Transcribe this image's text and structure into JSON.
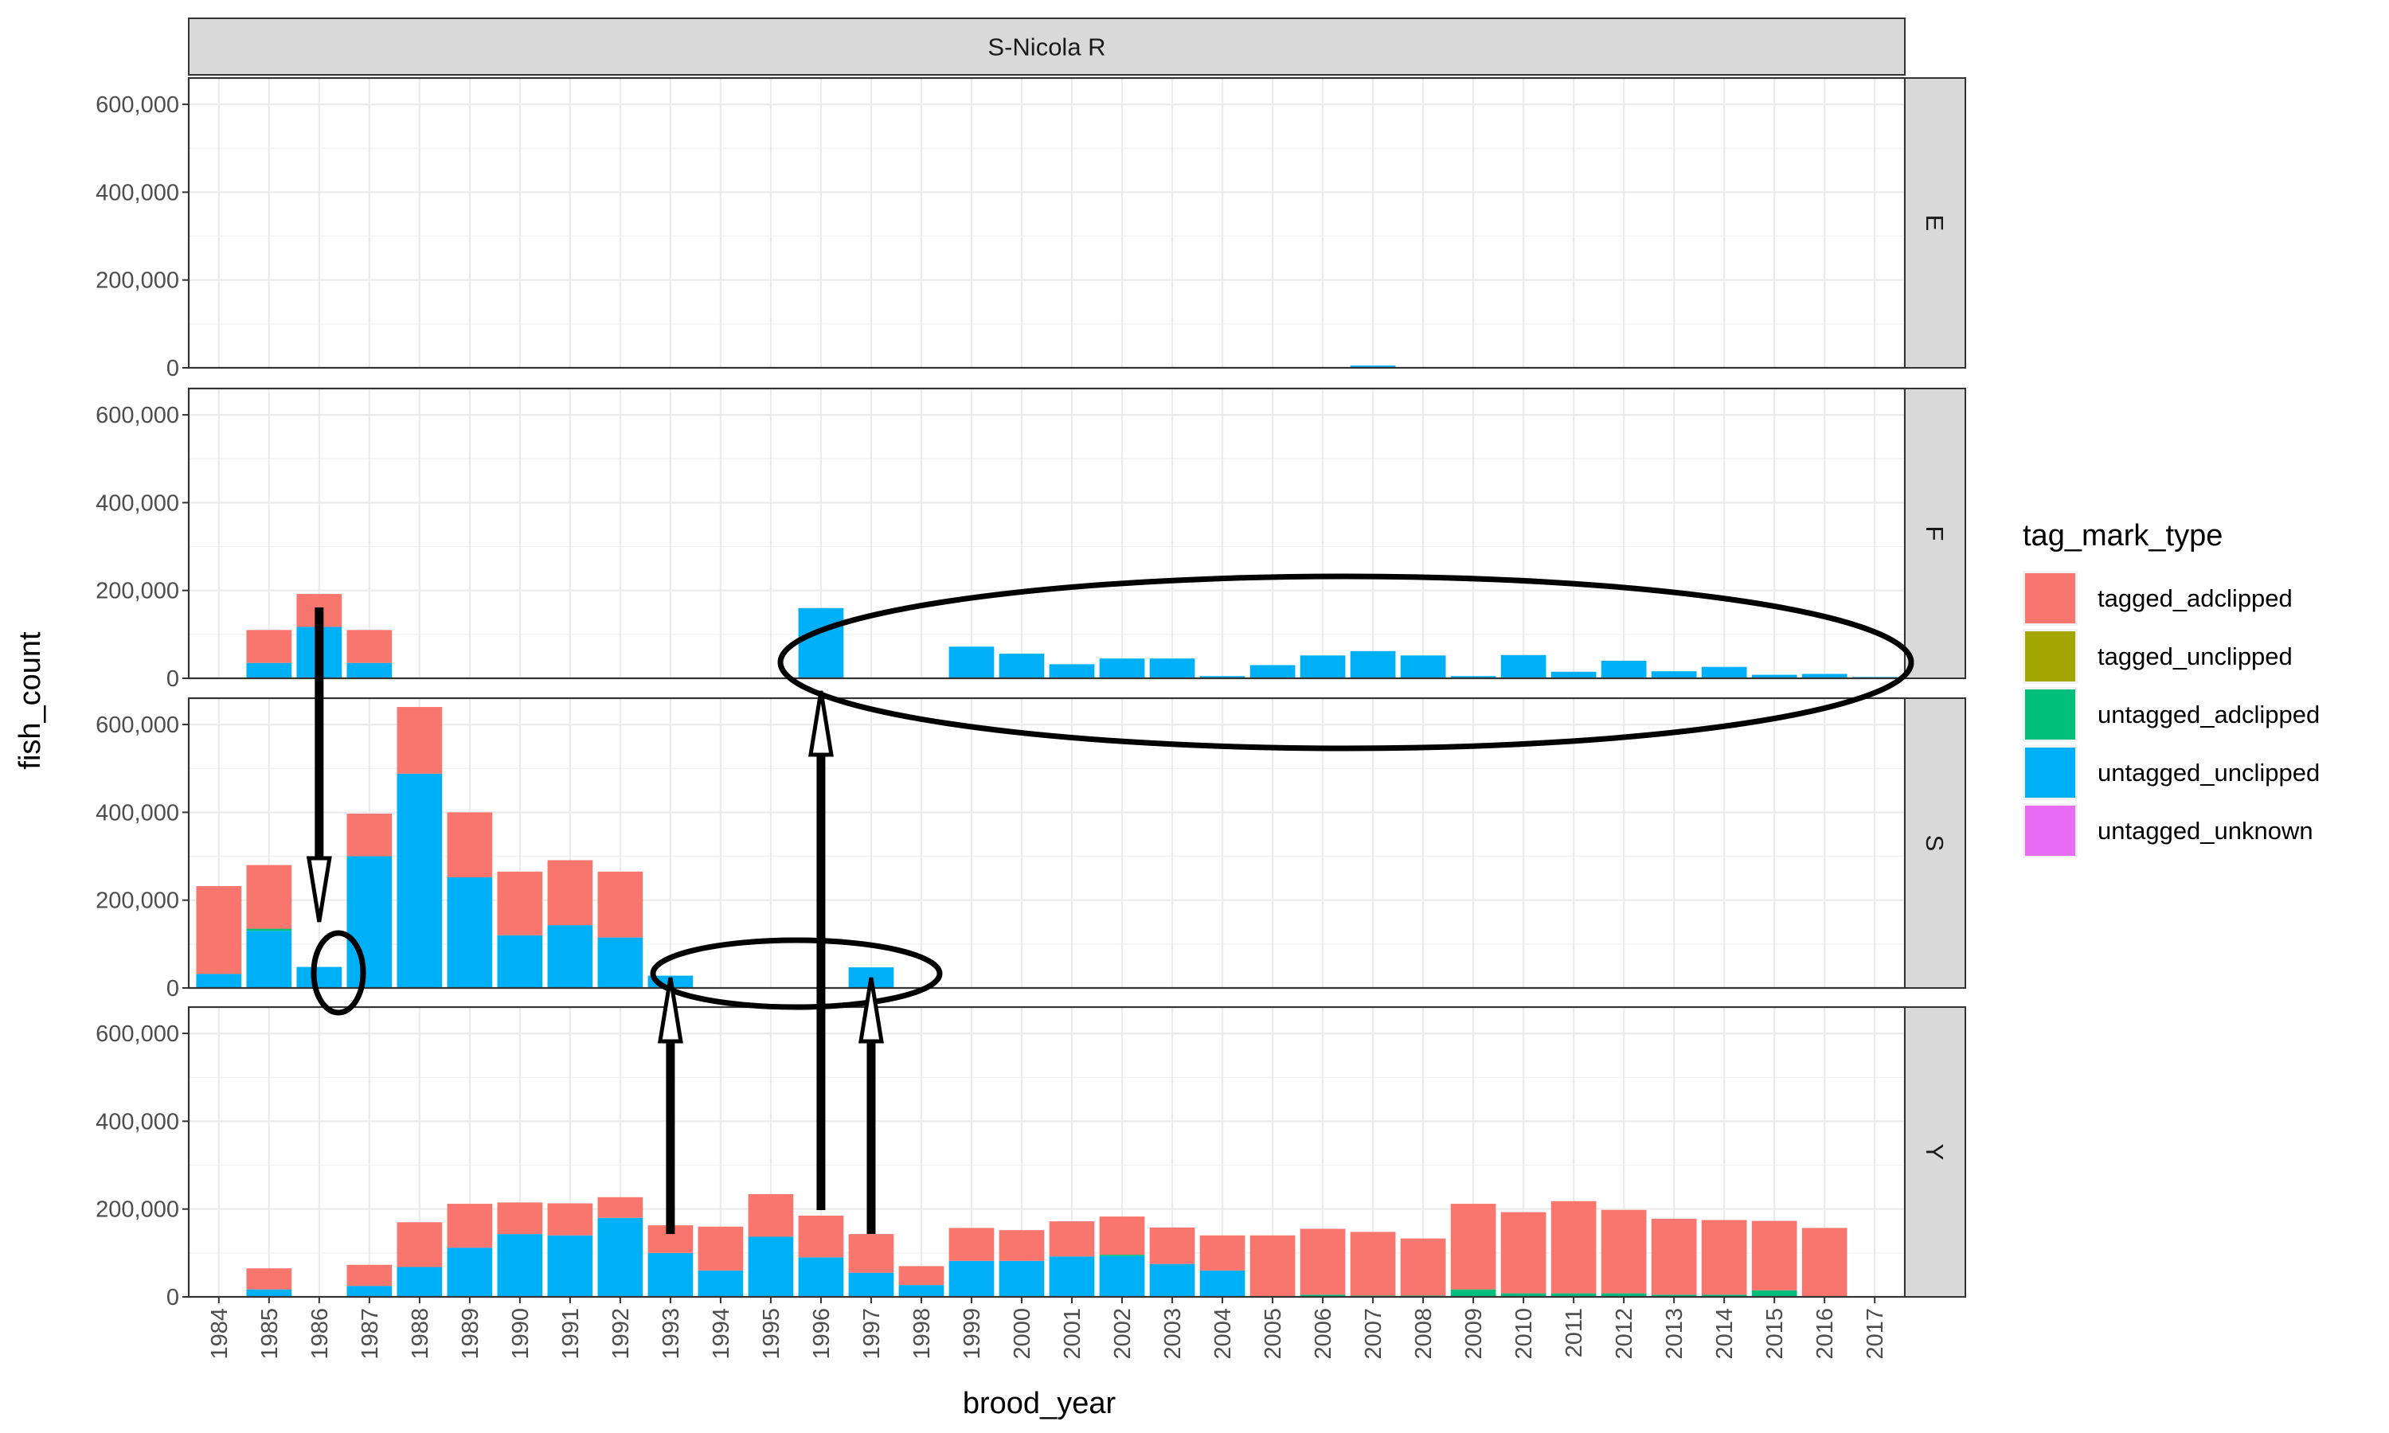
{
  "chart_data": {
    "type": "bar",
    "stacked": true,
    "facet_title": "S-Nicola R",
    "xlabel": "brood_year",
    "ylabel": "fish_count",
    "ylim": [
      0,
      660000
    ],
    "y_ticks": [
      0,
      200000,
      400000,
      600000
    ],
    "y_tick_labels": [
      "0",
      "200,000",
      "400,000",
      "600,000"
    ],
    "grid": true,
    "legend_position": "right",
    "legend_title": "tag_mark_type",
    "categories": [
      "1984",
      "1985",
      "1986",
      "1987",
      "1988",
      "1989",
      "1990",
      "1991",
      "1992",
      "1993",
      "1994",
      "1995",
      "1996",
      "1997",
      "1998",
      "1999",
      "2000",
      "2001",
      "2002",
      "2003",
      "2004",
      "2005",
      "2006",
      "2007",
      "2008",
      "2009",
      "2010",
      "2011",
      "2012",
      "2013",
      "2014",
      "2015",
      "2016",
      "2017"
    ],
    "series_styles": [
      {
        "name": "tagged_adclipped",
        "color": "#F8766D"
      },
      {
        "name": "tagged_unclipped",
        "color": "#A3A500"
      },
      {
        "name": "untagged_adclipped",
        "color": "#00BF7D"
      },
      {
        "name": "untagged_unclipped",
        "color": "#00B0F6"
      },
      {
        "name": "untagged_unknown",
        "color": "#E76BF3"
      }
    ],
    "panels": [
      {
        "label": "E",
        "series": [
          {
            "name": "tagged_adclipped",
            "values": [
              0,
              0,
              0,
              0,
              0,
              0,
              0,
              0,
              0,
              0,
              0,
              0,
              0,
              0,
              0,
              0,
              0,
              0,
              0,
              0,
              0,
              0,
              0,
              0,
              0,
              0,
              0,
              0,
              0,
              0,
              0,
              0,
              0,
              0
            ]
          },
          {
            "name": "tagged_unclipped",
            "values": [
              0,
              0,
              0,
              0,
              0,
              0,
              0,
              0,
              0,
              0,
              0,
              0,
              0,
              0,
              0,
              0,
              0,
              0,
              0,
              0,
              0,
              0,
              0,
              0,
              0,
              0,
              0,
              0,
              0,
              0,
              0,
              0,
              0,
              0
            ]
          },
          {
            "name": "untagged_adclipped",
            "values": [
              0,
              0,
              0,
              0,
              0,
              0,
              0,
              0,
              0,
              0,
              0,
              0,
              0,
              0,
              0,
              0,
              0,
              0,
              0,
              0,
              0,
              0,
              0,
              0,
              0,
              0,
              0,
              0,
              0,
              0,
              0,
              0,
              0,
              0
            ]
          },
          {
            "name": "untagged_unclipped",
            "values": [
              0,
              0,
              0,
              0,
              0,
              0,
              0,
              0,
              0,
              0,
              0,
              0,
              0,
              0,
              0,
              0,
              0,
              0,
              0,
              0,
              0,
              0,
              0,
              5000,
              0,
              0,
              0,
              0,
              0,
              0,
              0,
              0,
              0,
              0
            ]
          },
          {
            "name": "untagged_unknown",
            "values": [
              0,
              0,
              0,
              0,
              0,
              0,
              0,
              0,
              0,
              0,
              0,
              0,
              0,
              0,
              0,
              0,
              0,
              0,
              0,
              0,
              0,
              0,
              0,
              0,
              0,
              0,
              0,
              0,
              0,
              0,
              0,
              0,
              0,
              0
            ]
          }
        ]
      },
      {
        "label": "F",
        "series": [
          {
            "name": "tagged_adclipped",
            "values": [
              0,
              75000,
              75000,
              75000,
              0,
              0,
              0,
              0,
              0,
              0,
              0,
              0,
              0,
              0,
              0,
              0,
              0,
              0,
              0,
              0,
              0,
              0,
              0,
              0,
              0,
              0,
              0,
              0,
              0,
              0,
              0,
              0,
              0,
              0
            ]
          },
          {
            "name": "tagged_unclipped",
            "values": [
              0,
              0,
              0,
              0,
              0,
              0,
              0,
              0,
              0,
              0,
              0,
              0,
              0,
              0,
              0,
              0,
              0,
              0,
              0,
              0,
              0,
              0,
              0,
              0,
              0,
              0,
              0,
              0,
              0,
              0,
              0,
              0,
              0,
              0
            ]
          },
          {
            "name": "untagged_adclipped",
            "values": [
              0,
              0,
              0,
              0,
              0,
              0,
              0,
              0,
              0,
              0,
              0,
              0,
              0,
              0,
              0,
              0,
              0,
              0,
              0,
              0,
              0,
              0,
              0,
              0,
              0,
              0,
              0,
              0,
              0,
              0,
              0,
              0,
              0,
              0
            ]
          },
          {
            "name": "untagged_unclipped",
            "values": [
              0,
              35000,
              117000,
              35000,
              0,
              0,
              0,
              0,
              0,
              0,
              0,
              0,
              160000,
              0,
              0,
              72000,
              56000,
              32000,
              45000,
              45000,
              5000,
              30000,
              52000,
              62000,
              52000,
              5000,
              53000,
              15000,
              40000,
              16000,
              26000,
              8000,
              10000,
              3000
            ]
          },
          {
            "name": "untagged_unknown",
            "values": [
              0,
              0,
              0,
              0,
              0,
              0,
              0,
              0,
              0,
              0,
              0,
              0,
              0,
              0,
              0,
              0,
              0,
              0,
              0,
              0,
              0,
              0,
              0,
              0,
              0,
              0,
              0,
              0,
              0,
              0,
              0,
              0,
              0,
              0
            ]
          }
        ]
      },
      {
        "label": "S",
        "series": [
          {
            "name": "tagged_adclipped",
            "values": [
              200000,
              145000,
              0,
              97000,
              152000,
              148000,
              145000,
              148000,
              150000,
              0,
              0,
              0,
              0,
              0,
              0,
              0,
              0,
              0,
              0,
              0,
              0,
              0,
              0,
              0,
              0,
              0,
              0,
              0,
              0,
              0,
              0,
              0,
              0,
              0
            ]
          },
          {
            "name": "tagged_unclipped",
            "values": [
              0,
              0,
              0,
              0,
              0,
              0,
              0,
              0,
              0,
              0,
              0,
              0,
              0,
              0,
              0,
              0,
              0,
              0,
              0,
              0,
              0,
              0,
              0,
              0,
              0,
              0,
              0,
              0,
              0,
              0,
              0,
              0,
              0,
              0
            ]
          },
          {
            "name": "untagged_adclipped",
            "values": [
              0,
              5000,
              0,
              0,
              0,
              0,
              0,
              0,
              0,
              0,
              0,
              0,
              0,
              0,
              0,
              0,
              0,
              0,
              0,
              0,
              0,
              0,
              0,
              0,
              0,
              0,
              0,
              0,
              0,
              0,
              0,
              0,
              0,
              0
            ]
          },
          {
            "name": "untagged_unclipped",
            "values": [
              32000,
              130000,
              48000,
              300000,
              488000,
              252000,
              120000,
              143000,
              115000,
              28000,
              0,
              0,
              0,
              47000,
              0,
              0,
              0,
              0,
              0,
              0,
              0,
              0,
              0,
              0,
              0,
              0,
              0,
              0,
              0,
              0,
              0,
              0,
              0,
              0
            ]
          },
          {
            "name": "untagged_unknown",
            "values": [
              0,
              0,
              0,
              0,
              0,
              0,
              0,
              0,
              0,
              0,
              0,
              0,
              0,
              0,
              0,
              0,
              0,
              0,
              0,
              0,
              0,
              0,
              0,
              0,
              0,
              0,
              0,
              0,
              0,
              0,
              0,
              0,
              0,
              0
            ]
          }
        ]
      },
      {
        "label": "Y",
        "series": [
          {
            "name": "tagged_adclipped",
            "values": [
              0,
              48000,
              0,
              48000,
              102000,
              100000,
              72000,
              73000,
              47000,
              63000,
              100000,
              97000,
              95000,
              88000,
              43000,
              75000,
              70000,
              80000,
              87000,
              83000,
              80000,
              140000,
              150000,
              145000,
              130000,
              195000,
              185000,
              210000,
              190000,
              173000,
              170000,
              158000,
              157000,
              0
            ]
          },
          {
            "name": "tagged_unclipped",
            "values": [
              0,
              0,
              0,
              0,
              0,
              0,
              0,
              0,
              0,
              0,
              0,
              0,
              0,
              0,
              0,
              0,
              0,
              0,
              0,
              0,
              0,
              0,
              0,
              0,
              0,
              0,
              0,
              0,
              0,
              0,
              0,
              0,
              0,
              0
            ]
          },
          {
            "name": "untagged_adclipped",
            "values": [
              0,
              0,
              0,
              0,
              0,
              0,
              0,
              0,
              0,
              0,
              0,
              0,
              0,
              0,
              0,
              0,
              0,
              0,
              3000,
              0,
              0,
              0,
              5000,
              3000,
              3000,
              17000,
              8000,
              8000,
              8000,
              5000,
              5000,
              15000,
              0,
              0
            ]
          },
          {
            "name": "untagged_unclipped",
            "values": [
              0,
              17000,
              0,
              25000,
              68000,
              112000,
              143000,
              140000,
              180000,
              100000,
              60000,
              137000,
              90000,
              55000,
              27000,
              82000,
              82000,
              92000,
              93000,
              75000,
              60000,
              0,
              0,
              0,
              0,
              0,
              0,
              0,
              0,
              0,
              0,
              0,
              0,
              0
            ]
          },
          {
            "name": "untagged_unknown",
            "values": [
              0,
              0,
              0,
              0,
              0,
              0,
              0,
              0,
              0,
              0,
              0,
              0,
              0,
              0,
              0,
              0,
              0,
              0,
              0,
              0,
              0,
              0,
              0,
              0,
              0,
              0,
              0,
              0,
              0,
              0,
              0,
              0,
              0,
              0
            ]
          }
        ]
      }
    ]
  }
}
